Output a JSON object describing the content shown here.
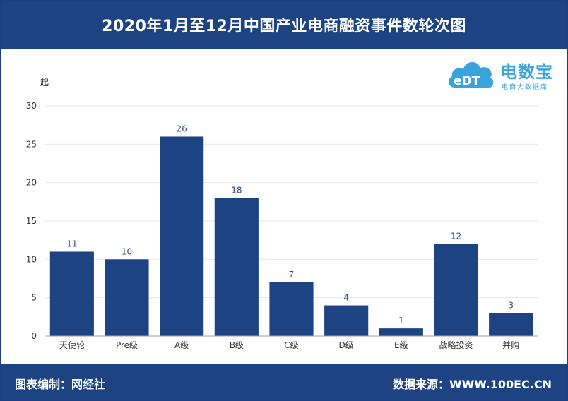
{
  "header": {
    "title": "2020年1月至12月中国产业电商融资事件数轮次图"
  },
  "footer": {
    "left": "图表编制：网经社",
    "right": "数据来源：WWW.100EC.CN"
  },
  "logo": {
    "name": "电数宝",
    "tagline": "电商大数据库",
    "icon_text": "eDT"
  },
  "chart_data": {
    "type": "bar",
    "ylabel": "起",
    "ylim": [
      0,
      30
    ],
    "yticks": [
      0,
      5,
      10,
      15,
      20,
      25,
      30
    ],
    "categories": [
      "天使轮",
      "Pre级",
      "A级",
      "B级",
      "C级",
      "D级",
      "E级",
      "战略投资",
      "并购"
    ],
    "values": [
      11,
      10,
      26,
      18,
      7,
      4,
      1,
      12,
      3
    ],
    "grid": true,
    "bar_color": "#1e4383",
    "label_color": "#2d4f8f"
  }
}
